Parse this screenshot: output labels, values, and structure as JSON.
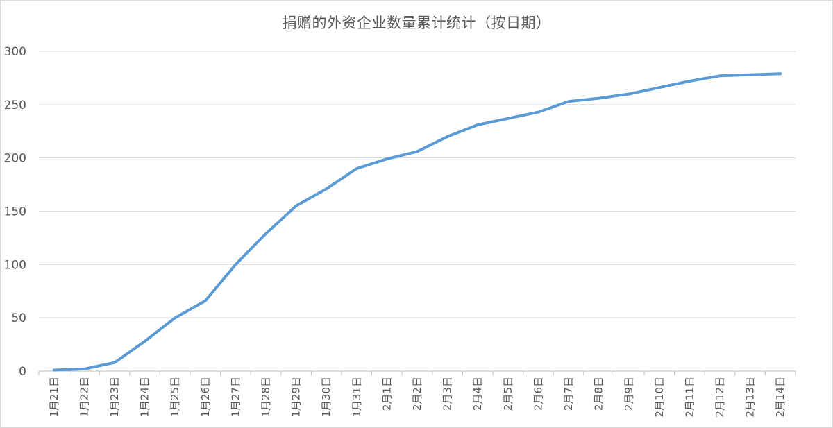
{
  "chart_data": {
    "type": "line",
    "title": "捐赠的外资企业数量累计统计（按日期）",
    "xlabel": "",
    "ylabel": "",
    "categories": [
      "1月21日",
      "1月22日",
      "1月23日",
      "1月24日",
      "1月25日",
      "1月26日",
      "1月27日",
      "1月28日",
      "1月29日",
      "1月30日",
      "1月31日",
      "2月1日",
      "2月2日",
      "2月3日",
      "2月4日",
      "2月5日",
      "2月6日",
      "2月7日",
      "2月8日",
      "2月9日",
      "2月10日",
      "2月11日",
      "2月12日",
      "2月13日",
      "2月14日"
    ],
    "series": [
      {
        "name": "",
        "values": [
          1,
          2,
          8,
          28,
          50,
          66,
          100,
          129,
          155,
          171,
          190,
          199,
          206,
          220,
          231,
          237,
          243,
          253,
          256,
          260,
          266,
          272,
          277,
          278,
          279
        ],
        "color": "#5b9bd5"
      }
    ],
    "ylim": [
      0,
      300
    ],
    "yticks": [
      0,
      50,
      100,
      150,
      200,
      250,
      300
    ],
    "grid": true,
    "legend": "none"
  }
}
